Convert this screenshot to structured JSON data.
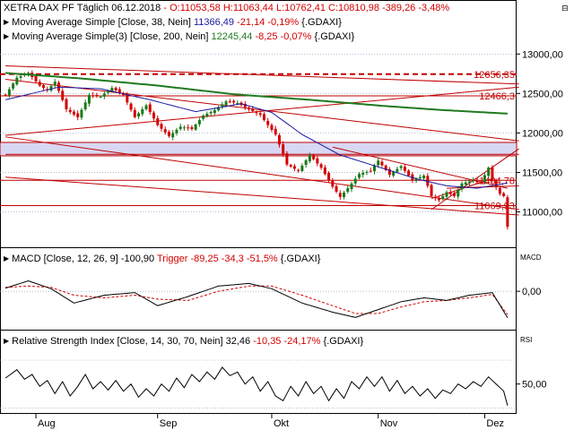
{
  "header": {
    "row1": {
      "title": "XETRA DAX PF Täglich",
      "date": "06.12.2018",
      "ohlc_prefix": "-",
      "ohlc": "O:11053,58 H:11063,44 L:10762,41 C:10810,98 -389,26 -3,48%"
    },
    "row2": {
      "label": "Moving Average Simple [Close, 38, Nein]",
      "value": "11366,49",
      "change": "-21,14 -0,19%",
      "symbol": "{.GDAXI}"
    },
    "row3": {
      "label": "Moving Average Simple(3) [Close, 200, Nein]",
      "value": "12245,44",
      "change": "-8,25 -0,07%",
      "symbol": "{.GDAXI}"
    }
  },
  "macd_header": {
    "label": "MACD [Close, 12, 26, 9]",
    "value": "-100,90",
    "trigger": "Trigger -89,25 -34,3 -51,5%",
    "symbol": "{.GDAXI}",
    "axis_title": "MACD"
  },
  "rsi_header": {
    "label": "Relative Strength Index [Close, 14, 30, 70, Nein]",
    "value": "32,46",
    "change": "-10,35 -24,17%",
    "symbol": "{.GDAXI}",
    "axis_title": "RSI"
  },
  "corner_marker": "⊟",
  "colors": {
    "up": "#1a7a1a",
    "down": "#d40000",
    "ma38": "#1a1aa0",
    "ma200": "#1f7a1f",
    "trendline": "#c00000",
    "zone_fill": "#d8d8f4",
    "grid": "#7f9fbf",
    "signal": "#d40000"
  },
  "chart_data": [
    {
      "type": "candlestick",
      "title": "XETRA DAX PF Täglich",
      "ylim": [
        10620,
        13480
      ],
      "y_ticks": [
        "13000,00",
        "12500,00",
        "12000,00",
        "11500,00",
        "11000,00"
      ],
      "y_tick_values": [
        13000,
        12500,
        12000,
        11500,
        11000
      ],
      "x_tick_labels": [
        "Aug",
        "Sep",
        "Okt",
        "Nov",
        "Dez"
      ],
      "x_tick_index": [
        8,
        40,
        70,
        98,
        126
      ],
      "n_bars": 133,
      "anchors": [
        [
          0,
          12480
        ],
        [
          3,
          12700
        ],
        [
          6,
          12760
        ],
        [
          9,
          12600
        ],
        [
          11,
          12540
        ],
        [
          13,
          12650
        ],
        [
          16,
          12300
        ],
        [
          19,
          12200
        ],
        [
          22,
          12480
        ],
        [
          25,
          12460
        ],
        [
          28,
          12570
        ],
        [
          31,
          12480
        ],
        [
          34,
          12200
        ],
        [
          37,
          12350
        ],
        [
          40,
          12100
        ],
        [
          43,
          11960
        ],
        [
          46,
          12080
        ],
        [
          49,
          12050
        ],
        [
          52,
          12220
        ],
        [
          55,
          12290
        ],
        [
          58,
          12400
        ],
        [
          61,
          12380
        ],
        [
          64,
          12300
        ],
        [
          67,
          12230
        ],
        [
          69,
          12100
        ],
        [
          71,
          11980
        ],
        [
          74,
          11600
        ],
        [
          77,
          11520
        ],
        [
          80,
          11720
        ],
        [
          83,
          11560
        ],
        [
          86,
          11320
        ],
        [
          88,
          11190
        ],
        [
          90,
          11300
        ],
        [
          93,
          11480
        ],
        [
          96,
          11520
        ],
        [
          98,
          11650
        ],
        [
          101,
          11470
        ],
        [
          104,
          11580
        ],
        [
          107,
          11400
        ],
        [
          110,
          11460
        ],
        [
          112,
          11200
        ],
        [
          114,
          11150
        ],
        [
          116,
          11250
        ],
        [
          118,
          11200
        ],
        [
          120,
          11360
        ],
        [
          123,
          11400
        ],
        [
          125,
          11370
        ],
        [
          127,
          11560
        ],
        [
          128,
          11390
        ],
        [
          130,
          11230
        ],
        [
          131,
          11200
        ],
        [
          132,
          10811
        ]
      ],
      "ma38": {
        "name": "Moving Average Simple [Close, 38, Nein]",
        "anchors": [
          [
            0,
            12420
          ],
          [
            14,
            12580
          ],
          [
            25,
            12560
          ],
          [
            38,
            12420
          ],
          [
            50,
            12270
          ],
          [
            62,
            12370
          ],
          [
            70,
            12260
          ],
          [
            78,
            11980
          ],
          [
            88,
            11720
          ],
          [
            98,
            11570
          ],
          [
            108,
            11420
          ],
          [
            116,
            11330
          ],
          [
            124,
            11300
          ],
          [
            132,
            11366
          ]
        ]
      },
      "ma200": {
        "name": "Moving Average Simple(3) [Close, 200, Nein]",
        "anchors": [
          [
            0,
            12760
          ],
          [
            20,
            12690
          ],
          [
            40,
            12600
          ],
          [
            60,
            12490
          ],
          [
            80,
            12420
          ],
          [
            100,
            12340
          ],
          [
            115,
            12290
          ],
          [
            132,
            12245
          ]
        ]
      },
      "levels": [
        {
          "label": "12656,35",
          "value": 12745,
          "style": "dashed"
        },
        {
          "label": "12466,3",
          "value": 12470,
          "style": "solid"
        },
        {
          "label": "11404,78",
          "value": 11400,
          "style": "solid"
        },
        {
          "label": "11069,93",
          "value": 11080,
          "style": "solid"
        }
      ],
      "zone": [
        11710,
        11880
      ],
      "trendlines": [
        {
          "i1": 0,
          "v1": 12850,
          "i2": 138,
          "v2": 12620
        },
        {
          "i1": 0,
          "v1": 12680,
          "i2": 138,
          "v2": 11900
        },
        {
          "i1": 0,
          "v1": 11970,
          "i2": 138,
          "v2": 12580
        },
        {
          "i1": 0,
          "v1": 11950,
          "i2": 138,
          "v2": 11030
        },
        {
          "i1": 0,
          "v1": 11440,
          "i2": 138,
          "v2": 10960
        },
        {
          "i1": 0,
          "v1": 11730,
          "i2": 138,
          "v2": 11730
        },
        {
          "i1": 86,
          "v1": 11820,
          "i2": 132,
          "v2": 11300
        },
        {
          "i1": 112,
          "v1": 11030,
          "i2": 138,
          "v2": 11800
        },
        {
          "i1": 112,
          "v1": 11170,
          "i2": 128,
          "v2": 11420
        },
        {
          "i1": 116,
          "v1": 11300,
          "i2": 138,
          "v2": 11330
        }
      ]
    },
    {
      "type": "line",
      "title": "MACD [Close, 12, 26, 9]",
      "ylim": [
        -140,
        100
      ],
      "y_ticks": [
        "0,00"
      ],
      "y_tick_values": [
        0
      ],
      "series": [
        {
          "name": "MACD",
          "anchors": [
            [
              0,
              12
            ],
            [
              6,
              40
            ],
            [
              12,
              10
            ],
            [
              18,
              -45
            ],
            [
              26,
              -15
            ],
            [
              34,
              -5
            ],
            [
              40,
              -55
            ],
            [
              48,
              -20
            ],
            [
              56,
              20
            ],
            [
              64,
              30
            ],
            [
              70,
              10
            ],
            [
              78,
              -45
            ],
            [
              86,
              -80
            ],
            [
              92,
              -100
            ],
            [
              98,
              -70
            ],
            [
              104,
              -40
            ],
            [
              110,
              -25
            ],
            [
              116,
              -35
            ],
            [
              122,
              -15
            ],
            [
              128,
              -5
            ],
            [
              132,
              -101
            ]
          ]
        },
        {
          "name": "Trigger",
          "anchors": [
            [
              0,
              15
            ],
            [
              6,
              20
            ],
            [
              12,
              15
            ],
            [
              18,
              -15
            ],
            [
              26,
              -25
            ],
            [
              34,
              -15
            ],
            [
              40,
              -30
            ],
            [
              48,
              -35
            ],
            [
              56,
              0
            ],
            [
              64,
              20
            ],
            [
              70,
              20
            ],
            [
              78,
              -15
            ],
            [
              86,
              -55
            ],
            [
              92,
              -85
            ],
            [
              98,
              -85
            ],
            [
              104,
              -60
            ],
            [
              110,
              -40
            ],
            [
              116,
              -35
            ],
            [
              122,
              -25
            ],
            [
              128,
              -12
            ],
            [
              132,
              -89
            ]
          ]
        }
      ]
    },
    {
      "type": "line",
      "title": "Relative Strength Index [Close, 14, 30, 70, Nein]",
      "ylim": [
        28,
        82
      ],
      "y_ticks": [
        "50,00"
      ],
      "y_tick_values": [
        50
      ],
      "levels": [
        70,
        30
      ],
      "series": [
        {
          "name": "RSI",
          "anchors": [
            [
              0,
              55
            ],
            [
              3,
              62
            ],
            [
              5,
              54
            ],
            [
              7,
              58
            ],
            [
              9,
              48
            ],
            [
              11,
              53
            ],
            [
              13,
              42
            ],
            [
              15,
              52
            ],
            [
              17,
              40
            ],
            [
              19,
              48
            ],
            [
              21,
              58
            ],
            [
              23,
              46
            ],
            [
              25,
              52
            ],
            [
              27,
              45
            ],
            [
              29,
              53
            ],
            [
              31,
              44
            ],
            [
              33,
              50
            ],
            [
              35,
              39
            ],
            [
              37,
              46
            ],
            [
              39,
              40
            ],
            [
              41,
              50
            ],
            [
              43,
              44
            ],
            [
              45,
              55
            ],
            [
              47,
              47
            ],
            [
              49,
              58
            ],
            [
              51,
              52
            ],
            [
              53,
              60
            ],
            [
              55,
              54
            ],
            [
              57,
              64
            ],
            [
              59,
              57
            ],
            [
              61,
              60
            ],
            [
              63,
              50
            ],
            [
              65,
              56
            ],
            [
              67,
              44
            ],
            [
              69,
              52
            ],
            [
              71,
              40
            ],
            [
              73,
              36
            ],
            [
              75,
              48
            ],
            [
              77,
              40
            ],
            [
              79,
              52
            ],
            [
              81,
              42
            ],
            [
              83,
              48
            ],
            [
              85,
              36
            ],
            [
              87,
              46
            ],
            [
              89,
              38
            ],
            [
              91,
              52
            ],
            [
              93,
              46
            ],
            [
              95,
              56
            ],
            [
              97,
              48
            ],
            [
              99,
              56
            ],
            [
              101,
              44
            ],
            [
              103,
              53
            ],
            [
              105,
              42
            ],
            [
              107,
              48
            ],
            [
              109,
              40
            ],
            [
              111,
              46
            ],
            [
              113,
              38
            ],
            [
              115,
              45
            ],
            [
              117,
              42
            ],
            [
              119,
              50
            ],
            [
              121,
              46
            ],
            [
              123,
              52
            ],
            [
              125,
              48
            ],
            [
              127,
              56
            ],
            [
              129,
              50
            ],
            [
              131,
              44
            ],
            [
              132,
              32
            ]
          ]
        }
      ]
    }
  ]
}
